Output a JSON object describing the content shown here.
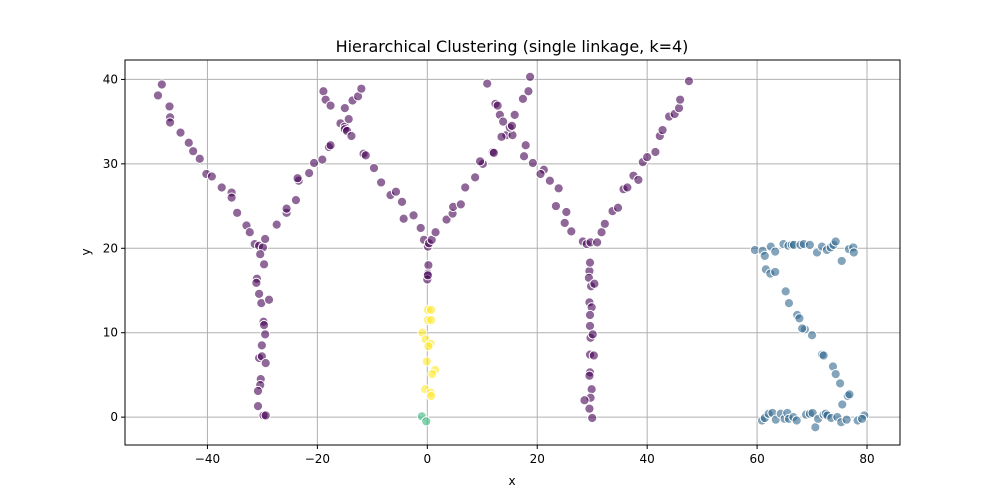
{
  "chart_data": {
    "type": "scatter",
    "title": "Hierarchical Clustering (single linkage, k=4)",
    "xlabel": "x",
    "ylabel": "y",
    "xlim": [
      -55,
      86
    ],
    "ylim": [
      -3.3,
      42.3
    ],
    "xticks": [
      -40,
      -20,
      0,
      20,
      40,
      60,
      80
    ],
    "yticks": [
      0,
      10,
      20,
      30,
      40
    ],
    "grid": true,
    "series": [
      {
        "cluster": 0,
        "color": "#440154",
        "opacity": 0.6,
        "points": [
          [
            -49,
            38.1
          ],
          [
            -48.3,
            39.4
          ],
          [
            -46.9,
            36.8
          ],
          [
            -46.8,
            35.5
          ],
          [
            -46.8,
            34.9
          ],
          [
            -44.9,
            33.7
          ],
          [
            -43.4,
            32.5
          ],
          [
            -42.6,
            31.5
          ],
          [
            -41.4,
            30.6
          ],
          [
            -40.2,
            28.8
          ],
          [
            -39.2,
            28.5
          ],
          [
            -37.4,
            27.2
          ],
          [
            -35.6,
            26.6
          ],
          [
            -35.6,
            26.0
          ],
          [
            -34.6,
            24.2
          ],
          [
            -32.9,
            22.7
          ],
          [
            -32.3,
            21.9
          ],
          [
            -31.4,
            20.5
          ],
          [
            -30.6,
            20.3
          ],
          [
            -29.9,
            20.1
          ],
          [
            -30.4,
            19.3
          ],
          [
            -29.5,
            21.1
          ],
          [
            -29.7,
            18.1
          ],
          [
            -31.0,
            16.4
          ],
          [
            -31.1,
            15.9
          ],
          [
            -30.6,
            14.6
          ],
          [
            -30.2,
            13.5
          ],
          [
            -28.8,
            13.9
          ],
          [
            -29.8,
            11.3
          ],
          [
            -29.7,
            10.9
          ],
          [
            -29.5,
            9.8
          ],
          [
            -30.1,
            8.5
          ],
          [
            -30.6,
            7.0
          ],
          [
            -30.1,
            7.2
          ],
          [
            -29.4,
            6.4
          ],
          [
            -30.3,
            4.5
          ],
          [
            -30.4,
            3.8
          ],
          [
            -30.8,
            3.1
          ],
          [
            -30.8,
            1.3
          ],
          [
            -29.8,
            0.2
          ],
          [
            -29.4,
            0.2
          ],
          [
            -27.4,
            22.8
          ],
          [
            -25.6,
            24.2
          ],
          [
            -25.6,
            24.7
          ],
          [
            -23.9,
            25.7
          ],
          [
            -23.4,
            28.0
          ],
          [
            -23.6,
            28.3
          ],
          [
            -21.5,
            28.9
          ],
          [
            -20.6,
            30.1
          ],
          [
            -19.1,
            30.5
          ],
          [
            -17.9,
            32.0
          ],
          [
            -17.6,
            32.2
          ],
          [
            -18.9,
            38.6
          ],
          [
            -18.5,
            37.6
          ],
          [
            -17.6,
            36.9
          ],
          [
            -15.8,
            34.8
          ],
          [
            -15.0,
            36.6
          ],
          [
            -15.0,
            34.4
          ],
          [
            -15.0,
            34.1
          ],
          [
            -14.6,
            33.9
          ],
          [
            -13.8,
            33.3
          ],
          [
            -14.3,
            35.3
          ],
          [
            -13.6,
            37.5
          ],
          [
            -12.6,
            38.0
          ],
          [
            -12.0,
            38.9
          ],
          [
            -11.6,
            31.2
          ],
          [
            -11.2,
            31.0
          ],
          [
            -9.7,
            29.5
          ],
          [
            -8.4,
            27.8
          ],
          [
            -6.7,
            26.3
          ],
          [
            -5.7,
            26.7
          ],
          [
            -4.6,
            25.5
          ],
          [
            -4.3,
            23.5
          ],
          [
            -2.5,
            23.9
          ],
          [
            -1.2,
            22.4
          ],
          [
            -0.6,
            21.0
          ],
          [
            0.1,
            20.2
          ],
          [
            0.3,
            20.6
          ],
          [
            0.8,
            21.0
          ],
          [
            1.5,
            21.9
          ],
          [
            3.5,
            23.4
          ],
          [
            4.6,
            24.1
          ],
          [
            4.7,
            24.9
          ],
          [
            6.1,
            25.2
          ],
          [
            6.9,
            27.2
          ],
          [
            8.7,
            28.4
          ],
          [
            10.1,
            30.0
          ],
          [
            9.6,
            30.3
          ],
          [
            11.9,
            31.4
          ],
          [
            12.1,
            31.3
          ],
          [
            10.9,
            39.5
          ],
          [
            12.4,
            37.1
          ],
          [
            12.8,
            36.9
          ],
          [
            13.2,
            35.8
          ],
          [
            13.8,
            35.0
          ],
          [
            14.4,
            33.4
          ],
          [
            13.5,
            33.2
          ],
          [
            15.5,
            33.4
          ],
          [
            15.0,
            34.3
          ],
          [
            15.4,
            34.5
          ],
          [
            15.9,
            35.8
          ],
          [
            17.4,
            37.7
          ],
          [
            18.4,
            38.6
          ],
          [
            18.7,
            40.3
          ],
          [
            17.9,
            32.2
          ],
          [
            17.6,
            30.9
          ],
          [
            19.2,
            30.1
          ],
          [
            21.2,
            29.3
          ],
          [
            20.6,
            28.8
          ],
          [
            22.3,
            28.0
          ],
          [
            23.9,
            27.1
          ],
          [
            23.4,
            25.0
          ],
          [
            25.3,
            24.3
          ],
          [
            25.0,
            23.0
          ],
          [
            26.2,
            22.0
          ],
          [
            28.3,
            20.8
          ],
          [
            29.0,
            20.5
          ],
          [
            29.7,
            20.7
          ],
          [
            30.9,
            20.7
          ],
          [
            31.7,
            21.9
          ],
          [
            32.3,
            22.9
          ],
          [
            33.7,
            24.4
          ],
          [
            34.7,
            24.8
          ],
          [
            35.7,
            27.0
          ],
          [
            36.4,
            27.2
          ],
          [
            37.5,
            28.6
          ],
          [
            38.4,
            28.1
          ],
          [
            39.2,
            30.2
          ],
          [
            40.0,
            30.8
          ],
          [
            41.5,
            31.4
          ],
          [
            42.3,
            33.3
          ],
          [
            42.8,
            34.0
          ],
          [
            44.0,
            35.6
          ],
          [
            45.0,
            35.9
          ],
          [
            45.8,
            36.6
          ],
          [
            46.0,
            37.6
          ],
          [
            47.6,
            39.8
          ],
          [
            29.5,
            17.3
          ],
          [
            29.6,
            18.3
          ],
          [
            29.4,
            16.5
          ],
          [
            29.8,
            15.5
          ],
          [
            30.4,
            15.8
          ],
          [
            29.5,
            13.6
          ],
          [
            29.9,
            13.0
          ],
          [
            29.6,
            12.1
          ],
          [
            29.6,
            10.8
          ],
          [
            29.7,
            9.4
          ],
          [
            30.1,
            9.8
          ],
          [
            29.6,
            7.4
          ],
          [
            30.3,
            7.3
          ],
          [
            29.6,
            5.3
          ],
          [
            29.5,
            4.9
          ],
          [
            29.9,
            3.3
          ],
          [
            29.7,
            2.3
          ],
          [
            28.6,
            2.0
          ],
          [
            29.5,
            1.0
          ],
          [
            30.0,
            -0.1
          ],
          [
            0.2,
            18.0
          ],
          [
            0.1,
            17.0
          ],
          [
            0.0,
            16.3
          ],
          [
            0.1,
            16.8
          ]
        ]
      },
      {
        "cluster": 1,
        "color": "#31688e",
        "opacity": 0.6,
        "points": [
          [
            59.6,
            19.8
          ],
          [
            61.0,
            19.7
          ],
          [
            61.4,
            19.1
          ],
          [
            62.5,
            20.2
          ],
          [
            63.3,
            19.6
          ],
          [
            64.8,
            20.5
          ],
          [
            65.7,
            20.3
          ],
          [
            66.3,
            20.4
          ],
          [
            66.7,
            20.4
          ],
          [
            67.9,
            20.4
          ],
          [
            68.5,
            20.5
          ],
          [
            69.6,
            20.4
          ],
          [
            70.9,
            19.5
          ],
          [
            71.8,
            20.2
          ],
          [
            72.7,
            19.8
          ],
          [
            73.4,
            20.1
          ],
          [
            73.9,
            20.4
          ],
          [
            74.3,
            20.8
          ],
          [
            75.4,
            18.5
          ],
          [
            76.7,
            19.9
          ],
          [
            77.5,
            20.1
          ],
          [
            77.6,
            19.5
          ],
          [
            61.6,
            17.5
          ],
          [
            62.4,
            17.0
          ],
          [
            63.3,
            17.2
          ],
          [
            65.2,
            14.9
          ],
          [
            65.8,
            13.5
          ],
          [
            67.3,
            12.1
          ],
          [
            67.7,
            11.7
          ],
          [
            68.7,
            10.4
          ],
          [
            68.2,
            10.5
          ],
          [
            70.0,
            9.7
          ],
          [
            71.8,
            7.4
          ],
          [
            72.1,
            7.3
          ],
          [
            73.8,
            6.0
          ],
          [
            74.3,
            5.1
          ],
          [
            75.1,
            4.0
          ],
          [
            75.5,
            1.5
          ],
          [
            76.5,
            2.5
          ],
          [
            76.8,
            2.7
          ],
          [
            60.9,
            -0.4
          ],
          [
            61.4,
            -0.1
          ],
          [
            62.1,
            0.4
          ],
          [
            62.8,
            0.5
          ],
          [
            63.4,
            -0.3
          ],
          [
            64.3,
            0.4
          ],
          [
            65.0,
            -0.2
          ],
          [
            65.5,
            0.5
          ],
          [
            65.8,
            -0.2
          ],
          [
            66.6,
            0.0
          ],
          [
            67.2,
            -0.4
          ],
          [
            68.9,
            0.3
          ],
          [
            69.6,
            0.4
          ],
          [
            70.1,
            0.5
          ],
          [
            70.6,
            -1.2
          ],
          [
            71.1,
            -0.2
          ],
          [
            72.1,
            0.3
          ],
          [
            72.5,
            0.4
          ],
          [
            72.8,
            0.2
          ],
          [
            73.5,
            -0.1
          ],
          [
            74.6,
            0.0
          ],
          [
            75.3,
            -0.6
          ],
          [
            76.3,
            -0.3
          ],
          [
            78.3,
            -0.4
          ],
          [
            79.5,
            0.2
          ],
          [
            79.1,
            -0.2
          ]
        ]
      },
      {
        "cluster": 2,
        "color": "#35b779",
        "opacity": 0.6,
        "points": [
          [
            -1.0,
            0.1
          ],
          [
            -0.2,
            -0.5
          ]
        ]
      },
      {
        "cluster": 3,
        "color": "#fde725",
        "opacity": 0.6,
        "points": [
          [
            0.1,
            12.7
          ],
          [
            0.7,
            12.7
          ],
          [
            0.1,
            11.5
          ],
          [
            0.7,
            11.5
          ],
          [
            -0.9,
            10.0
          ],
          [
            -0.3,
            9.2
          ],
          [
            0.6,
            8.7
          ],
          [
            0.2,
            8.4
          ],
          [
            -0.1,
            6.6
          ],
          [
            1.4,
            5.6
          ],
          [
            0.9,
            5.1
          ],
          [
            -0.4,
            3.3
          ],
          [
            0.6,
            2.9
          ],
          [
            0.7,
            2.5
          ]
        ]
      }
    ]
  }
}
